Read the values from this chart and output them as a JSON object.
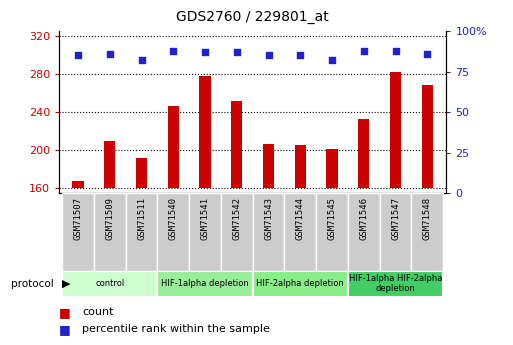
{
  "title": "GDS2760 / 229801_at",
  "samples": [
    "GSM71507",
    "GSM71509",
    "GSM71511",
    "GSM71540",
    "GSM71541",
    "GSM71542",
    "GSM71543",
    "GSM71544",
    "GSM71545",
    "GSM71546",
    "GSM71547",
    "GSM71548"
  ],
  "counts": [
    168,
    210,
    192,
    246,
    278,
    252,
    207,
    206,
    201,
    233,
    282,
    268
  ],
  "percentile_ranks": [
    85,
    86,
    82,
    88,
    87,
    87,
    85,
    85,
    82,
    88,
    88,
    86
  ],
  "ylim_left": [
    155,
    325
  ],
  "ylim_right": [
    0,
    100
  ],
  "yticks_left": [
    160,
    200,
    240,
    280,
    320
  ],
  "yticks_right": [
    0,
    25,
    50,
    75,
    100
  ],
  "bar_color": "#cc0000",
  "dot_color": "#2222cc",
  "protocol_groups": [
    {
      "label": "control",
      "start": 0,
      "end": 2,
      "color": "#ccffcc"
    },
    {
      "label": "HIF-1alpha depletion",
      "start": 3,
      "end": 5,
      "color": "#99ee99"
    },
    {
      "label": "HIF-2alpha depletion",
      "start": 6,
      "end": 8,
      "color": "#88ee88"
    },
    {
      "label": "HIF-1alpha HIF-2alpha\ndepletion",
      "start": 9,
      "end": 11,
      "color": "#44cc66"
    }
  ],
  "tick_bg_color": "#cccccc",
  "plot_bg_color": "#ffffff",
  "bar_bottom": 160,
  "left_label_color": "#cc0000",
  "right_label_color": "#2222cc"
}
